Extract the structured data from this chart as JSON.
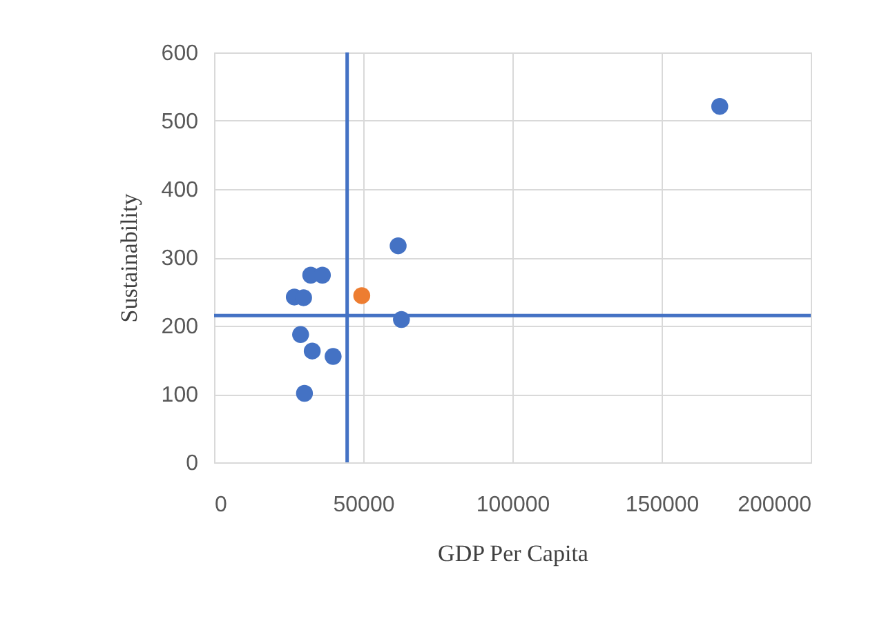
{
  "chart_data": {
    "type": "scatter",
    "xlabel": "GDP Per Capita",
    "ylabel": "Sustainability",
    "series": [
      {
        "color": "#4472c4",
        "x": [
          169500,
          61700,
          62800,
          32400,
          36300,
          26900,
          30000,
          29000,
          32900,
          39900,
          30300
        ],
        "values": [
          521,
          317,
          209,
          274,
          274,
          242,
          241,
          187,
          163,
          155,
          101
        ]
      },
      {
        "color": "#ed7d31",
        "x": [
          49500
        ],
        "values": [
          244
        ]
      }
    ],
    "xlim": [
      0,
      200000
    ],
    "xticks": [
      0,
      50000,
      100000,
      150000,
      200000
    ],
    "ylim": [
      0,
      600
    ],
    "yticks": [
      0,
      100,
      200,
      300,
      400,
      500,
      600
    ],
    "ref_lines": [
      {
        "axis": "x",
        "value": 44600,
        "color": "#4472c4"
      },
      {
        "axis": "y",
        "value": 215,
        "color": "#4472c4"
      }
    ],
    "grid": true,
    "marker": "circle"
  }
}
